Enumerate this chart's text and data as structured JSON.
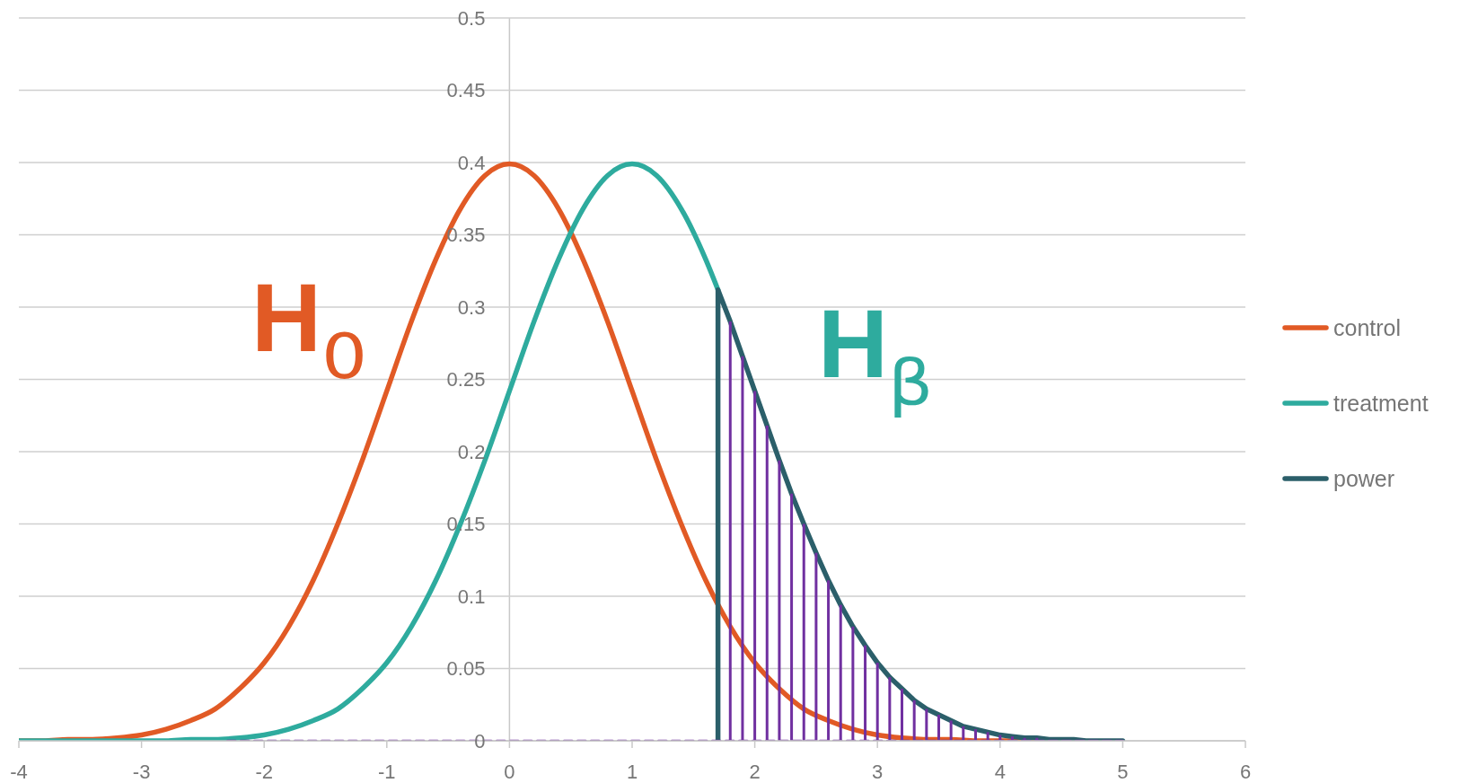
{
  "chart_data": {
    "type": "line",
    "series": [
      {
        "name": "control",
        "color": "#e15a25",
        "x": [
          -4,
          -3.8,
          -3.6,
          -3.4,
          -3.2,
          -3,
          -2.8,
          -2.6,
          -2.4,
          -2.2,
          -2,
          -1.8,
          -1.6,
          -1.4,
          -1.2,
          -1,
          -0.8,
          -0.6,
          -0.4,
          -0.2,
          0,
          0.2,
          0.4,
          0.6,
          0.8,
          1,
          1.2,
          1.4,
          1.6,
          1.8,
          2,
          2.2,
          2.4,
          2.6,
          2.8,
          3,
          3.2,
          3.4,
          3.6,
          3.8,
          4,
          4.2,
          4.4
        ],
        "values": [
          0,
          0,
          0.001,
          0.001,
          0.002,
          0.004,
          0.008,
          0.014,
          0.022,
          0.036,
          0.054,
          0.079,
          0.111,
          0.15,
          0.194,
          0.242,
          0.29,
          0.333,
          0.368,
          0.391,
          0.399,
          0.391,
          0.368,
          0.333,
          0.29,
          0.242,
          0.194,
          0.15,
          0.111,
          0.079,
          0.054,
          0.036,
          0.022,
          0.014,
          0.008,
          0.004,
          0.002,
          0.001,
          0.001,
          0,
          0,
          0,
          0
        ]
      },
      {
        "name": "treatment",
        "color": "#2eab9e",
        "x": [
          -4,
          -3.8,
          -3.6,
          -3.4,
          -3.2,
          -3,
          -2.8,
          -2.6,
          -2.4,
          -2.2,
          -2,
          -1.8,
          -1.6,
          -1.4,
          -1.2,
          -1,
          -0.8,
          -0.6,
          -0.4,
          -0.2,
          0,
          0.2,
          0.4,
          0.6,
          0.8,
          1,
          1.2,
          1.4,
          1.6,
          1.7
        ],
        "values": [
          0,
          0,
          0,
          0,
          0,
          0,
          0,
          0.001,
          0.001,
          0.002,
          0.004,
          0.008,
          0.014,
          0.022,
          0.036,
          0.054,
          0.079,
          0.111,
          0.15,
          0.194,
          0.242,
          0.29,
          0.333,
          0.368,
          0.391,
          0.399,
          0.391,
          0.368,
          0.333,
          0.312
        ]
      },
      {
        "name": "power",
        "color": "#2b5f6a",
        "x": [
          1.7,
          1.7,
          1.8,
          1.9,
          2,
          2.1,
          2.2,
          2.3,
          2.4,
          2.5,
          2.6,
          2.7,
          2.8,
          2.9,
          3,
          3.1,
          3.2,
          3.3,
          3.4,
          3.5,
          3.6,
          3.7,
          3.8,
          3.9,
          4,
          4.1,
          4.2,
          4.3,
          4.4,
          4.5,
          4.6,
          4.7,
          4.8,
          4.9,
          5
        ],
        "values": [
          0,
          0.312,
          0.29,
          0.266,
          0.242,
          0.218,
          0.194,
          0.171,
          0.15,
          0.13,
          0.111,
          0.094,
          0.079,
          0.066,
          0.054,
          0.044,
          0.036,
          0.028,
          0.022,
          0.018,
          0.014,
          0.01,
          0.008,
          0.006,
          0.004,
          0.003,
          0.002,
          0.002,
          0.001,
          0.001,
          0.001,
          0,
          0,
          0,
          0
        ]
      },
      {
        "color": "#7030a0",
        "line_style": "dashed",
        "x": [
          -2.3,
          1.7,
          1.8,
          1.9,
          2,
          2.1,
          2.2,
          2.3,
          2.4,
          2.5,
          2.6,
          2.7,
          2.8,
          2.9,
          3,
          3.1,
          3.2,
          3.3,
          3.4,
          3.5,
          3.6,
          3.7,
          3.8,
          3.9,
          4,
          4.1,
          4.2,
          4.3,
          4.4,
          4.5,
          4.6,
          4.7,
          4.8,
          4.9,
          5
        ],
        "values": [
          0,
          0,
          0,
          0,
          0,
          0,
          0,
          0,
          0,
          0,
          0,
          0,
          0,
          0,
          0,
          0,
          0,
          0,
          0,
          0,
          0,
          0,
          0,
          0,
          0,
          0,
          0,
          0,
          0,
          0,
          0,
          0,
          0,
          0,
          0
        ],
        "errors": [
          null,
          null,
          [
            0,
            0.29
          ],
          [
            0,
            0.266
          ],
          [
            0,
            0.242
          ],
          [
            0,
            0.218
          ],
          [
            0,
            0.194
          ],
          [
            0,
            0.171
          ],
          [
            0,
            0.15
          ],
          [
            0,
            0.13
          ],
          [
            0,
            0.111
          ],
          [
            0,
            0.094
          ],
          [
            0,
            0.079
          ],
          [
            0,
            0.066
          ],
          [
            0,
            0.054
          ],
          [
            0,
            0.044
          ],
          [
            0,
            0.036
          ],
          [
            0,
            0.028
          ],
          [
            0,
            0.022
          ],
          [
            0,
            0.018
          ],
          [
            0,
            0.014
          ],
          [
            0,
            0.01
          ],
          [
            0,
            0.008
          ],
          [
            0,
            0.006
          ],
          [
            0,
            0.004
          ],
          [
            0,
            0.003
          ],
          [
            0,
            0.002
          ],
          [
            0,
            0.002
          ],
          null,
          null,
          null,
          null,
          null,
          null,
          null
        ]
      }
    ],
    "xlim": [
      -4,
      6
    ],
    "xticks": [
      -4,
      -3,
      -2,
      -1,
      0,
      1,
      2,
      3,
      4,
      5,
      6
    ],
    "ylim": [
      0,
      0.5
    ],
    "yticks": [
      0,
      0.05,
      0.1,
      0.15,
      0.2,
      0.25,
      0.3,
      0.35,
      0.4,
      0.45,
      0.5
    ],
    "grid": "y",
    "legend": "right",
    "marker": "none",
    "line_style": "solid",
    "annotations": [
      "H₀",
      "Hᵦ"
    ]
  }
}
